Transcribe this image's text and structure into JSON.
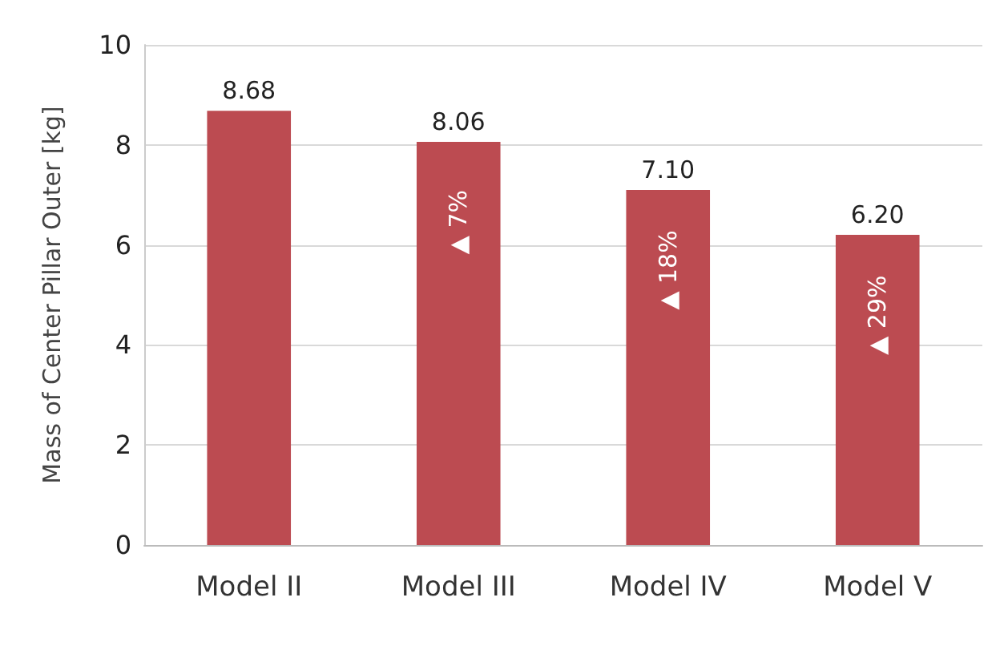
{
  "chart_data": {
    "type": "bar",
    "ylabel": "Mass of Center Pillar Outer [kg]",
    "categories": [
      "Model II",
      "Model III",
      "Model IV",
      "Model V"
    ],
    "values": [
      8.68,
      8.06,
      7.1,
      6.2
    ],
    "value_labels": [
      "8.68",
      "8.06",
      "7.10",
      "6.20"
    ],
    "color": "#bc4b51",
    "ylim": [
      0,
      10
    ],
    "yticks": [
      0,
      2,
      4,
      6,
      8,
      10
    ],
    "grid": "y",
    "annotations": [
      "▲ 7%",
      "▲ 18%",
      "▲ 29%"
    ]
  }
}
